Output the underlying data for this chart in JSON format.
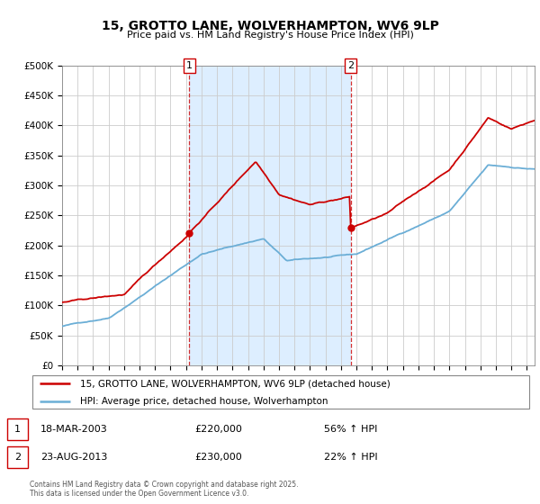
{
  "title": "15, GROTTO LANE, WOLVERHAMPTON, WV6 9LP",
  "subtitle": "Price paid vs. HM Land Registry's House Price Index (HPI)",
  "legend_label1": "15, GROTTO LANE, WOLVERHAMPTON, WV6 9LP (detached house)",
  "legend_label2": "HPI: Average price, detached house, Wolverhampton",
  "transaction1_date": "18-MAR-2003",
  "transaction1_price": "£220,000",
  "transaction1_hpi": "56% ↑ HPI",
  "transaction2_date": "23-AUG-2013",
  "transaction2_price": "£230,000",
  "transaction2_hpi": "22% ↑ HPI",
  "line_color_hpi": "#6baed6",
  "line_color_price": "#cc0000",
  "vline_color": "#cc0000",
  "footer": "Contains HM Land Registry data © Crown copyright and database right 2025.\nThis data is licensed under the Open Government Licence v3.0.",
  "ylim": [
    0,
    500000
  ],
  "background_color": "#ffffff",
  "plot_bg": "#ffffff",
  "shaded_region_color": "#ddeeff"
}
